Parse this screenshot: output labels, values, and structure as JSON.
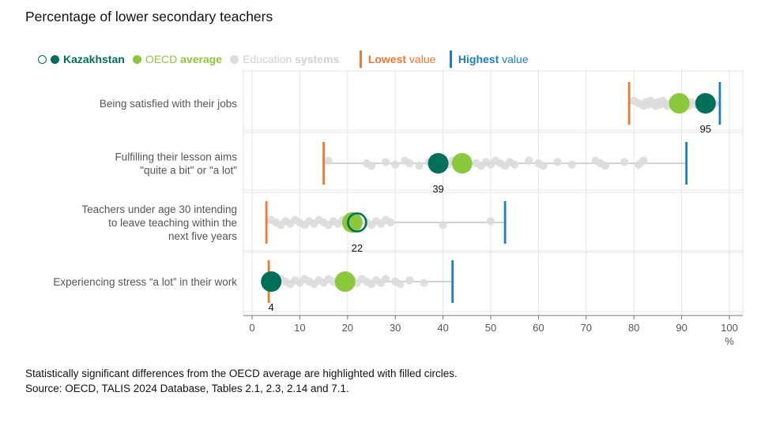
{
  "title": "Percentage of lower secondary teachers",
  "legend": {
    "kazakhstan": "Kazakhstan",
    "oecd_prefix": "OECD ",
    "oecd_bold": "average",
    "edu_prefix": "Education ",
    "edu_bold": "systems",
    "lowest_bold": "Lowest",
    "lowest_rest": " value",
    "highest_bold": "Highest",
    "highest_rest": " value"
  },
  "footnote": {
    "line1": "Statistically significant differences from the OECD average are highlighted with filled circles.",
    "line2": "Source: OECD, TALIS 2024 Database, Tables 2.1, 2.3, 2.14 and 7.1."
  },
  "colors": {
    "kazakhstan": "#00705b",
    "oecd": "#8cc83c",
    "systems": "#dcdcdc",
    "lowest": "#f0792f",
    "highest": "#1b7ec2",
    "grid": "#e6e6e6",
    "range": "#b8b8b8"
  },
  "chart_data": {
    "type": "scatter",
    "title": "Percentage of lower secondary teachers",
    "xlabel": "%",
    "xlim": [
      0,
      100
    ],
    "xticks": [
      0,
      10,
      20,
      30,
      40,
      50,
      60,
      70,
      80,
      90,
      100
    ],
    "rows": [
      {
        "label": [
          "Being satisfied with their jobs"
        ],
        "kazakhstan": 95,
        "kazakhstan_significant": true,
        "kazakhstan_label": "95",
        "oecd": 89.5,
        "lowest": 79,
        "highest": 98,
        "systems": [
          80,
          81,
          82,
          82.5,
          83,
          83.5,
          84,
          84.5,
          85,
          85.5,
          86,
          86.5,
          87,
          88,
          88.5,
          90,
          91,
          91.5,
          92,
          93,
          96,
          97
        ]
      },
      {
        "label": [
          "Fulfilling their lesson aims",
          "\"quite a bit\" or \"a lot\""
        ],
        "kazakhstan": 39,
        "kazakhstan_significant": true,
        "kazakhstan_label": "39",
        "oecd": 44,
        "lowest": 15,
        "highest": 91,
        "systems": [
          16,
          24,
          25,
          28,
          30,
          32,
          33,
          35,
          37,
          41,
          42,
          47,
          48,
          49,
          50,
          51,
          52,
          53,
          54,
          55,
          58,
          60,
          61,
          64,
          67,
          72,
          73,
          74,
          78,
          81,
          82
        ]
      },
      {
        "label": [
          "Teachers under age 30 intending",
          "to leave teaching within the",
          "next five years"
        ],
        "kazakhstan": 22,
        "kazakhstan_significant": false,
        "kazakhstan_label": "22",
        "oecd": 21,
        "lowest": 3,
        "highest": 53,
        "systems": [
          4,
          5,
          6,
          7,
          8,
          9,
          10,
          11,
          12,
          13,
          14,
          15,
          16,
          17,
          18,
          19,
          24,
          25,
          26,
          27,
          28,
          29,
          40,
          50
        ]
      },
      {
        "label": [
          "Experiencing stress “a lot” in their work"
        ],
        "kazakhstan": 4,
        "kazakhstan_significant": true,
        "kazakhstan_label": "4",
        "oecd": 19.5,
        "lowest": 3.5,
        "highest": 42,
        "systems": [
          6,
          7,
          8,
          9,
          10,
          11,
          12,
          13,
          14,
          15,
          16,
          17,
          18,
          21,
          22,
          23,
          24,
          25,
          26,
          27,
          28,
          30,
          31,
          33,
          36
        ]
      }
    ]
  }
}
